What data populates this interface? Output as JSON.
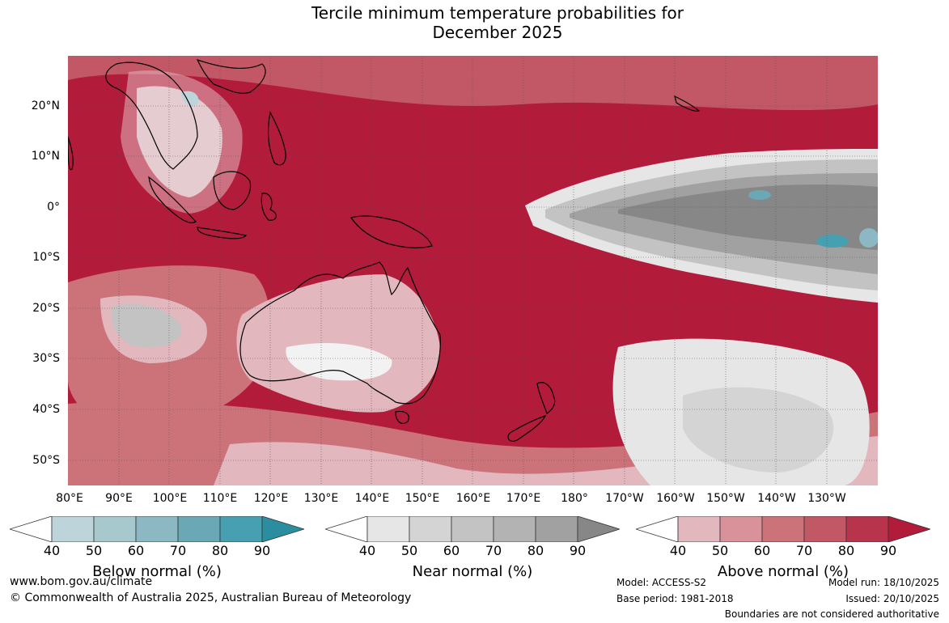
{
  "title": {
    "line1": "Tercile minimum temperature probabilities for",
    "line2": "December 2025"
  },
  "map": {
    "lat_labels": [
      "20°N",
      "10°N",
      "0°",
      "10°S",
      "20°S",
      "30°S",
      "40°S",
      "50°S"
    ],
    "lon_labels": [
      "80°E",
      "90°E",
      "100°E",
      "110°E",
      "120°E",
      "130°E",
      "140°E",
      "150°E",
      "160°E",
      "170°E",
      "180°",
      "170°W",
      "160°W",
      "150°W",
      "140°W",
      "130°W"
    ]
  },
  "colorbars": {
    "below": {
      "title": "Below normal (%)",
      "ticks": [
        "40",
        "50",
        "60",
        "70",
        "80",
        "90"
      ],
      "colors": [
        "#ffffff",
        "#bdd4da",
        "#a7c8cd",
        "#8bb8c3",
        "#6aa8b6",
        "#46a0b2",
        "#2b8ea0"
      ]
    },
    "near": {
      "title": "Near normal (%)",
      "ticks": [
        "40",
        "50",
        "60",
        "70",
        "80",
        "90"
      ],
      "colors": [
        "#ffffff",
        "#e6e6e6",
        "#d4d4d4",
        "#c3c3c3",
        "#b3b3b3",
        "#a1a1a1",
        "#878787"
      ]
    },
    "above": {
      "title": "Above normal (%)",
      "ticks": [
        "40",
        "50",
        "60",
        "70",
        "80",
        "90"
      ],
      "colors": [
        "#ffffff",
        "#e2b7bd",
        "#d99299",
        "#cc7379",
        "#c25866",
        "#b8344c",
        "#b31b3b"
      ]
    }
  },
  "footer": {
    "url": "www.bom.gov.au/climate",
    "copyright": "© Commonwealth of Australia 2025, Australian Bureau of Meteorology",
    "model": "Model: ACCESS-S2",
    "base_period": "Base period: 1981-2018",
    "model_run": "Model run: 18/10/2025",
    "issued": "Issued: 20/10/2025",
    "disclaimer": "Boundaries are not considered authoritative"
  }
}
